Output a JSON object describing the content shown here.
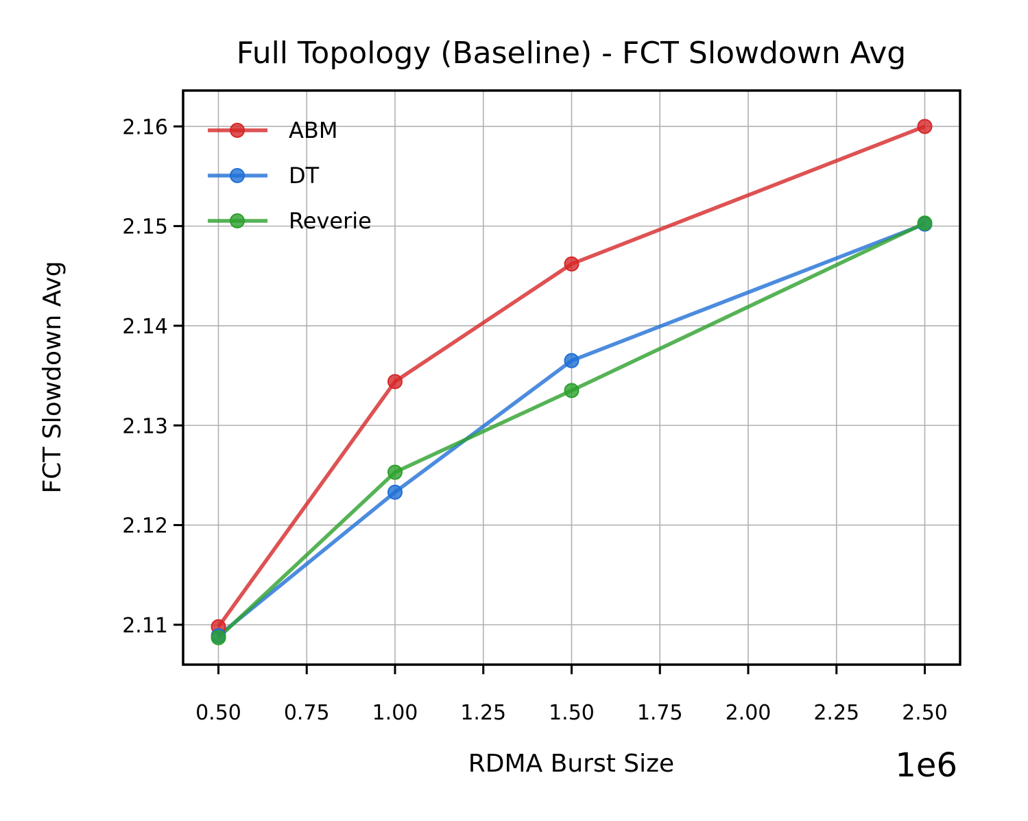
{
  "chart_data": {
    "type": "line",
    "title": "Full Topology (Baseline) - FCT Slowdown Avg",
    "xlabel": "RDMA Burst Size",
    "ylabel": "FCT Slowdown Avg",
    "x_offset_label": "1e6",
    "x": [
      0.5,
      1.0,
      1.5,
      2.5
    ],
    "xlim": [
      0.4,
      2.6
    ],
    "ylim": [
      2.106,
      2.1636
    ],
    "x_ticks": [
      0.5,
      0.75,
      1.0,
      1.25,
      1.5,
      1.75,
      2.0,
      2.25,
      2.5
    ],
    "x_tick_labels": [
      "0.50",
      "0.75",
      "1.00",
      "1.25",
      "1.50",
      "1.75",
      "2.00",
      "2.25",
      "2.50"
    ],
    "y_ticks": [
      2.11,
      2.12,
      2.13,
      2.14,
      2.15,
      2.16
    ],
    "y_tick_labels": [
      "2.11",
      "2.12",
      "2.13",
      "2.14",
      "2.15",
      "2.16"
    ],
    "grid": true,
    "legend_position": "top-left",
    "series": [
      {
        "name": "ABM",
        "color": "#d62728",
        "values": [
          2.1098,
          2.1344,
          2.1462,
          2.16
        ]
      },
      {
        "name": "DT",
        "color": "#1f6fd6",
        "values": [
          2.1089,
          2.1233,
          2.1365,
          2.1502
        ]
      },
      {
        "name": "Reverie",
        "color": "#2ca02c",
        "values": [
          2.1087,
          2.1253,
          2.1335,
          2.1503
        ]
      }
    ]
  }
}
